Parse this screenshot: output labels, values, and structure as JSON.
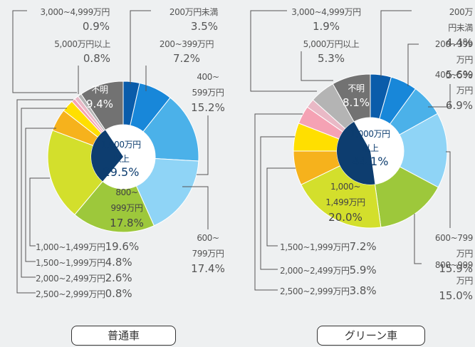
{
  "chart_data": [
    {
      "type": "pie",
      "title": "普通車",
      "categories": [
        "200万円未満",
        "200~399万円",
        "400~\n599万円",
        "600~\n799万円",
        "800~\n999万円",
        "1,000~1,499万円",
        "1,500~1,999万円",
        "2,000~2,499万円",
        "2,500~2,999万円",
        "3,000~4,999万円",
        "5,000万円以上",
        "不明"
      ],
      "values": [
        3.5,
        7.2,
        15.2,
        17.4,
        17.8,
        19.6,
        4.8,
        2.6,
        0.8,
        0.9,
        0.8,
        9.4
      ],
      "value_labels": [
        "3.5%",
        "7.2%",
        "15.2%",
        "17.4%",
        "17.8%",
        "19.6%",
        "4.8%",
        "2.6%",
        "0.8%",
        "0.9%",
        "0.8%",
        "9.4%"
      ],
      "colors": [
        "#0a5caa",
        "#1887d9",
        "#4bb1e9",
        "#8fd4f6",
        "#9dc83b",
        "#d3df2c",
        "#f6b21c",
        "#ffdf00",
        "#f5a2b4",
        "#e9b9c6",
        "#b4b4b4",
        "#727272"
      ],
      "inner": {
        "label": "1,000万円\n以上",
        "value": 29.5,
        "value_label": "29.5%",
        "color": "#0d3d6f"
      }
    },
    {
      "type": "pie",
      "title": "グリーン車",
      "categories": [
        "200万円未満",
        "200~399万円",
        "400~599万円",
        "600~799万円",
        "800~999万円",
        "1,000~\n1,499万円",
        "1,500~1,999万円",
        "2,000~2,499万円",
        "2,500~2,999万円",
        "3,000~4,999万円",
        "5,000万円以上",
        "不明"
      ],
      "values": [
        4.4,
        5.6,
        6.9,
        15.9,
        15.0,
        20.0,
        7.2,
        5.9,
        3.8,
        1.9,
        5.3,
        8.1
      ],
      "value_labels": [
        "4.4%",
        "5.6%",
        "6.9%",
        "15.9%",
        "15.0%",
        "20.0%",
        "7.2%",
        "5.9%",
        "3.8%",
        "1.9%",
        "5.3%",
        "8.1%"
      ],
      "colors": [
        "#0a5caa",
        "#1887d9",
        "#4bb1e9",
        "#8fd4f6",
        "#9dc83b",
        "#d3df2c",
        "#f6b21c",
        "#ffdf00",
        "#f5a2b4",
        "#e9b9c6",
        "#b4b4b4",
        "#727272"
      ],
      "inner": {
        "label": "1,000万円\n以上",
        "value": 44.1,
        "value_label": "44.1%",
        "color": "#0d3d6f"
      }
    }
  ]
}
